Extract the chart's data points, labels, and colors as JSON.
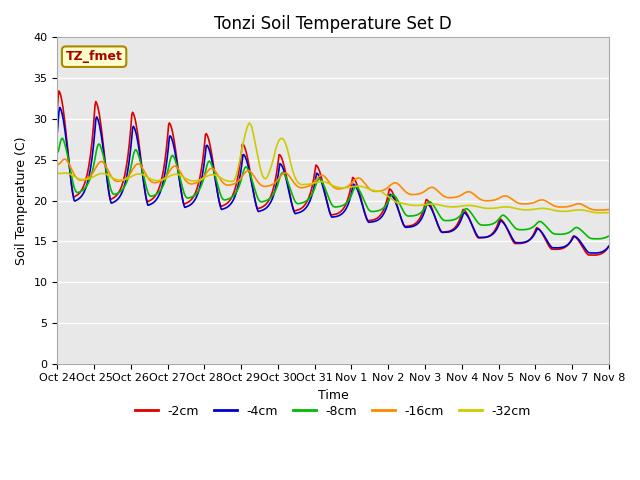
{
  "title": "Tonzi Soil Temperature Set D",
  "xlabel": "Time",
  "ylabel": "Soil Temperature (C)",
  "ylim": [
    0,
    40
  ],
  "x_tick_labels": [
    "Oct 24",
    "Oct 25",
    "Oct 26",
    "Oct 27",
    "Oct 28",
    "Oct 29",
    "Oct 30",
    "Oct 31",
    "Nov 1",
    "Nov 2",
    "Nov 3",
    "Nov 4",
    "Nov 5",
    "Nov 6",
    "Nov 7",
    "Nov 8"
  ],
  "series_colors": [
    "#dd0000",
    "#0000cc",
    "#00bb00",
    "#ff8800",
    "#cccc00"
  ],
  "series_labels": [
    "-2cm",
    "-4cm",
    "-8cm",
    "-16cm",
    "-32cm"
  ],
  "annotation_text": "TZ_fmet",
  "annotation_color": "#aa0000",
  "annotation_bg": "#ffffcc",
  "annotation_border": "#aa8800",
  "bg_color": "#e8e8e8",
  "grid_color": "#ffffff",
  "title_fontsize": 12,
  "axis_fontsize": 8,
  "legend_fontsize": 9
}
